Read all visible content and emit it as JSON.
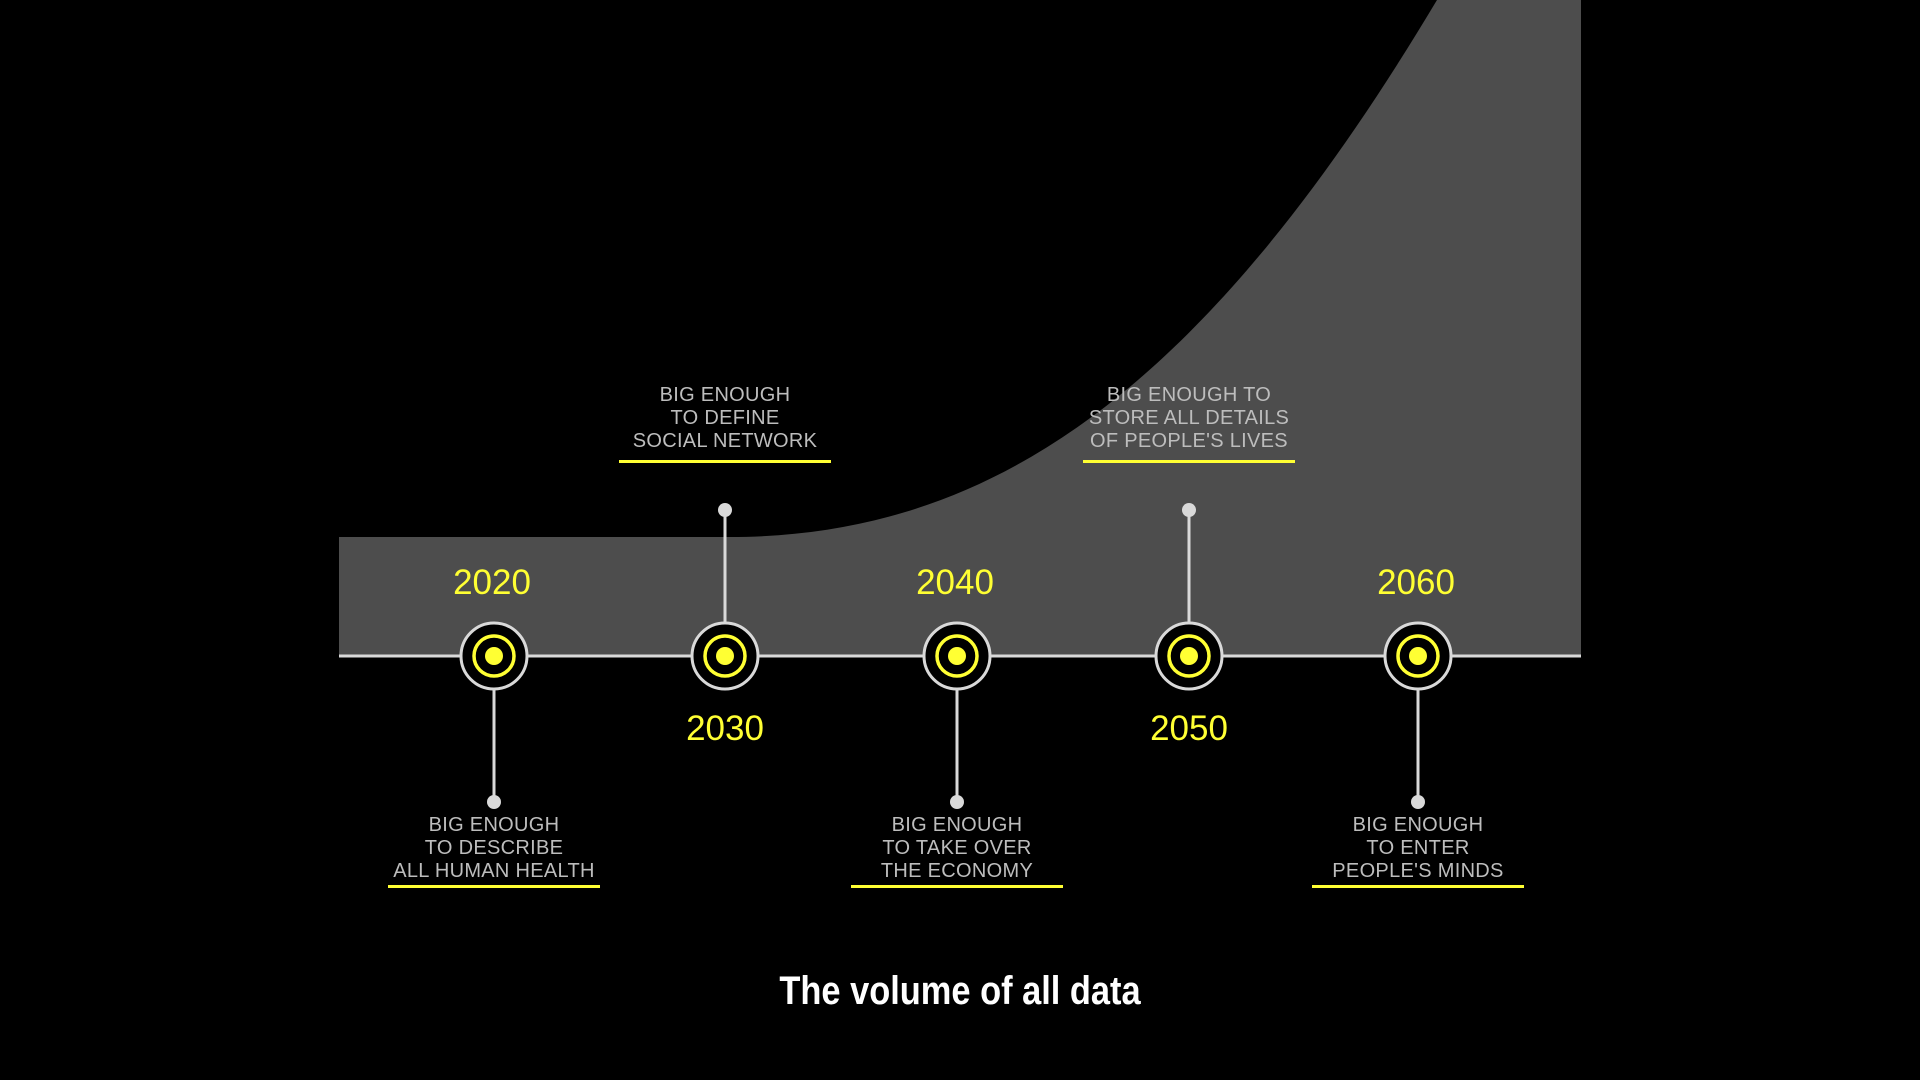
{
  "caption": "The volume of all data",
  "colors": {
    "background": "#000000",
    "area_fill": "#4d4d4d",
    "baseline": "#d9d9d9",
    "accent_yellow": "#ffff33",
    "label_gray": "#bdbdbd",
    "caption_white": "#ffffff"
  },
  "milestones": [
    {
      "year": "2020",
      "year_side": "above",
      "label_side": "below",
      "label_lines": [
        "BIG ENOUGH",
        "TO DESCRIBE",
        "ALL HUMAN HEALTH"
      ]
    },
    {
      "year": "2030",
      "year_side": "below",
      "label_side": "above",
      "label_lines": [
        "BIG ENOUGH",
        "TO DEFINE",
        "SOCIAL NETWORK"
      ]
    },
    {
      "year": "2040",
      "year_side": "above",
      "label_side": "below",
      "label_lines": [
        "BIG ENOUGH",
        "TO TAKE OVER",
        "THE ECONOMY"
      ]
    },
    {
      "year": "2050",
      "year_side": "below",
      "label_side": "above",
      "label_lines": [
        "BIG ENOUGH TO",
        "STORE ALL DETAILS",
        "OF PEOPLE'S LIVES"
      ]
    },
    {
      "year": "2060",
      "year_side": "above",
      "label_side": "below",
      "label_lines": [
        "BIG ENOUGH",
        "TO ENTER",
        "PEOPLE'S MINDS"
      ]
    }
  ]
}
